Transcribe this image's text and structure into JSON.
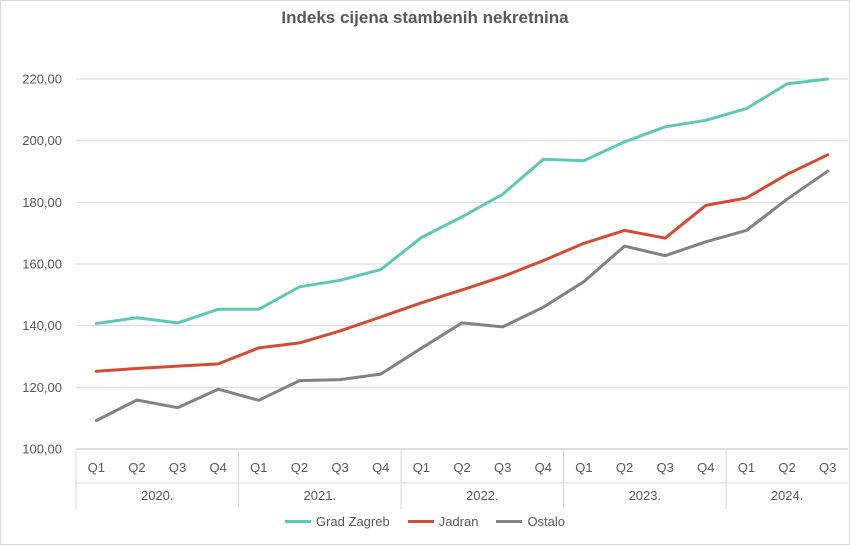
{
  "chart_data": {
    "type": "line",
    "title": "Indeks cijena stambenih nekretnina",
    "xlabel": "",
    "ylabel": "",
    "ylim": [
      100,
      220
    ],
    "yticks": [
      "100,00",
      "120,00",
      "140,00",
      "160,00",
      "180,00",
      "200,00",
      "220,00"
    ],
    "ytick_values": [
      100,
      120,
      140,
      160,
      180,
      200,
      220
    ],
    "quarters": [
      "Q1",
      "Q2",
      "Q3",
      "Q4",
      "Q1",
      "Q2",
      "Q3",
      "Q4",
      "Q1",
      "Q2",
      "Q3",
      "Q4",
      "Q1",
      "Q2",
      "Q3",
      "Q4",
      "Q1",
      "Q2",
      "Q3"
    ],
    "years": [
      {
        "label": "2020.",
        "count": 4
      },
      {
        "label": "2021.",
        "count": 4
      },
      {
        "label": "2022.",
        "count": 4
      },
      {
        "label": "2023.",
        "count": 4
      },
      {
        "label": "2024.",
        "count": 3
      }
    ],
    "grid": true,
    "legend_position": "bottom",
    "series": [
      {
        "name": "Grad Zagreb",
        "color": "#5ec8b4",
        "values": [
          140.7,
          142.6,
          140.9,
          145.3,
          145.3,
          152.6,
          154.7,
          158.2,
          168.6,
          175.3,
          182.6,
          194.0,
          193.5,
          199.6,
          204.5,
          206.6,
          210.4,
          218.4,
          220.0
        ]
      },
      {
        "name": "Jadran",
        "color": "#d64a35",
        "values": [
          125.2,
          126.1,
          126.9,
          127.6,
          132.8,
          134.4,
          138.3,
          142.8,
          147.4,
          151.6,
          155.9,
          161.1,
          166.7,
          170.9,
          168.4,
          179.0,
          181.4,
          189.1,
          195.4
        ]
      },
      {
        "name": "Ostalo",
        "color": "#828282",
        "values": [
          109.2,
          115.9,
          113.4,
          119.4,
          115.8,
          122.2,
          122.5,
          124.3,
          132.7,
          140.9,
          139.6,
          146.0,
          154.3,
          165.8,
          162.7,
          167.2,
          170.9,
          181.0,
          190.1
        ]
      }
    ]
  }
}
